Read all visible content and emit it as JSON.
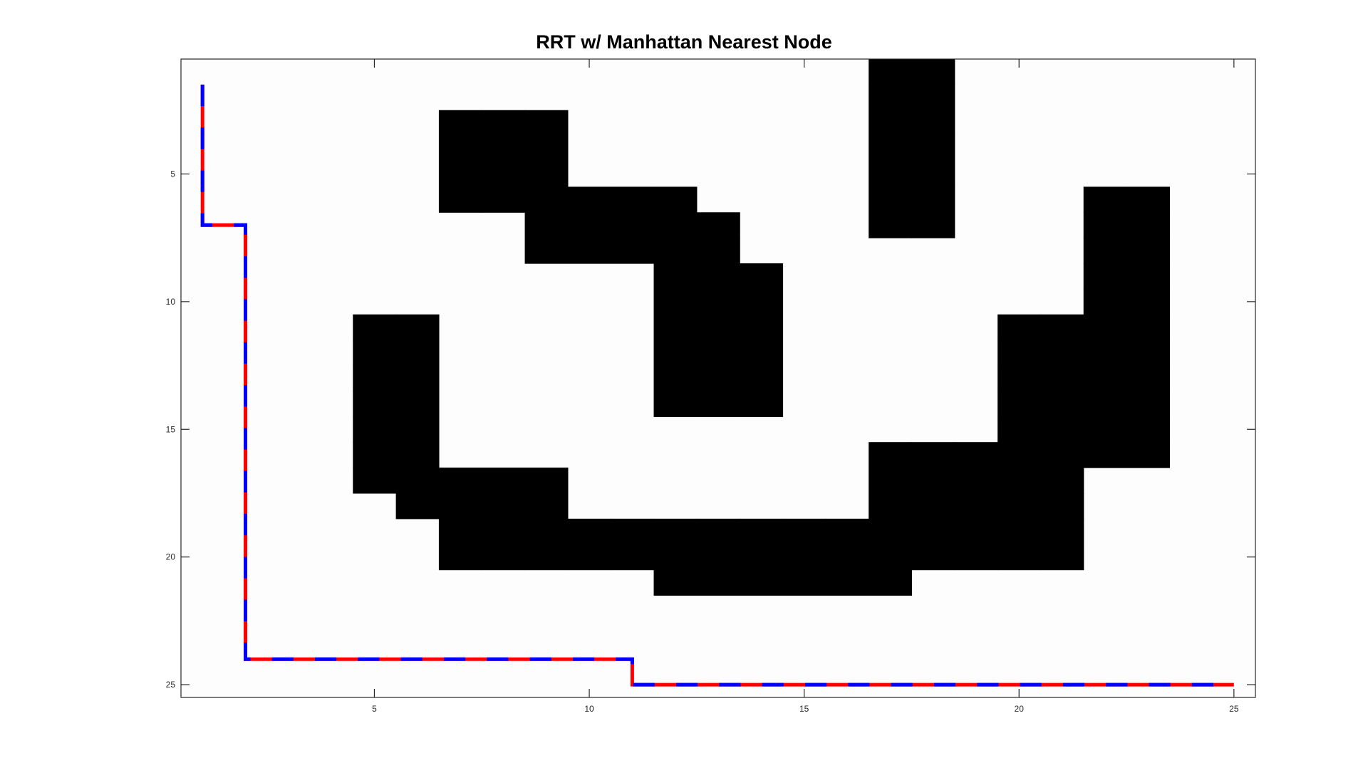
{
  "chart_data": {
    "type": "occupancy-grid",
    "title": "RRT w/ Manhattan Nearest Node",
    "xlabel": "",
    "ylabel": "",
    "xlim": [
      0.5,
      25.5
    ],
    "ylim": [
      0.5,
      25.5
    ],
    "y_reversed": true,
    "x_ticks": [
      5,
      10,
      15,
      20,
      25
    ],
    "y_ticks": [
      5,
      10,
      15,
      20,
      25
    ],
    "grid": false,
    "background_color": "#fdfdfd",
    "obstacle_color": "#000000",
    "obstacle_cells": [
      [
        17,
        1
      ],
      [
        18,
        1
      ],
      [
        17,
        2
      ],
      [
        18,
        2
      ],
      [
        7,
        3
      ],
      [
        8,
        3
      ],
      [
        9,
        3
      ],
      [
        17,
        3
      ],
      [
        18,
        3
      ],
      [
        7,
        4
      ],
      [
        8,
        4
      ],
      [
        9,
        4
      ],
      [
        17,
        4
      ],
      [
        18,
        4
      ],
      [
        7,
        5
      ],
      [
        8,
        5
      ],
      [
        9,
        5
      ],
      [
        17,
        5
      ],
      [
        18,
        5
      ],
      [
        7,
        6
      ],
      [
        8,
        6
      ],
      [
        9,
        6
      ],
      [
        10,
        6
      ],
      [
        11,
        6
      ],
      [
        12,
        6
      ],
      [
        17,
        6
      ],
      [
        18,
        6
      ],
      [
        22,
        6
      ],
      [
        23,
        6
      ],
      [
        9,
        7
      ],
      [
        10,
        7
      ],
      [
        11,
        7
      ],
      [
        12,
        7
      ],
      [
        13,
        7
      ],
      [
        17,
        7
      ],
      [
        18,
        7
      ],
      [
        22,
        7
      ],
      [
        23,
        7
      ],
      [
        9,
        8
      ],
      [
        10,
        8
      ],
      [
        11,
        8
      ],
      [
        12,
        8
      ],
      [
        13,
        8
      ],
      [
        22,
        8
      ],
      [
        23,
        8
      ],
      [
        12,
        9
      ],
      [
        13,
        9
      ],
      [
        14,
        9
      ],
      [
        22,
        9
      ],
      [
        23,
        9
      ],
      [
        12,
        10
      ],
      [
        13,
        10
      ],
      [
        14,
        10
      ],
      [
        22,
        10
      ],
      [
        23,
        10
      ],
      [
        5,
        11
      ],
      [
        6,
        11
      ],
      [
        12,
        11
      ],
      [
        13,
        11
      ],
      [
        14,
        11
      ],
      [
        20,
        11
      ],
      [
        21,
        11
      ],
      [
        22,
        11
      ],
      [
        23,
        11
      ],
      [
        5,
        12
      ],
      [
        6,
        12
      ],
      [
        12,
        12
      ],
      [
        13,
        12
      ],
      [
        14,
        12
      ],
      [
        20,
        12
      ],
      [
        21,
        12
      ],
      [
        22,
        12
      ],
      [
        23,
        12
      ],
      [
        5,
        13
      ],
      [
        6,
        13
      ],
      [
        12,
        13
      ],
      [
        13,
        13
      ],
      [
        14,
        13
      ],
      [
        20,
        13
      ],
      [
        21,
        13
      ],
      [
        22,
        13
      ],
      [
        23,
        13
      ],
      [
        5,
        14
      ],
      [
        6,
        14
      ],
      [
        12,
        14
      ],
      [
        13,
        14
      ],
      [
        14,
        14
      ],
      [
        20,
        14
      ],
      [
        21,
        14
      ],
      [
        22,
        14
      ],
      [
        23,
        14
      ],
      [
        5,
        15
      ],
      [
        6,
        15
      ],
      [
        20,
        15
      ],
      [
        21,
        15
      ],
      [
        22,
        15
      ],
      [
        23,
        15
      ],
      [
        5,
        16
      ],
      [
        6,
        16
      ],
      [
        17,
        16
      ],
      [
        18,
        16
      ],
      [
        19,
        16
      ],
      [
        20,
        16
      ],
      [
        21,
        16
      ],
      [
        22,
        16
      ],
      [
        23,
        16
      ],
      [
        5,
        17
      ],
      [
        6,
        17
      ],
      [
        7,
        17
      ],
      [
        8,
        17
      ],
      [
        9,
        17
      ],
      [
        17,
        17
      ],
      [
        18,
        17
      ],
      [
        19,
        17
      ],
      [
        20,
        17
      ],
      [
        21,
        17
      ],
      [
        6,
        18
      ],
      [
        7,
        18
      ],
      [
        8,
        18
      ],
      [
        9,
        18
      ],
      [
        17,
        18
      ],
      [
        18,
        18
      ],
      [
        19,
        18
      ],
      [
        20,
        18
      ],
      [
        21,
        18
      ],
      [
        7,
        19
      ],
      [
        8,
        19
      ],
      [
        9,
        19
      ],
      [
        10,
        19
      ],
      [
        11,
        19
      ],
      [
        12,
        19
      ],
      [
        13,
        19
      ],
      [
        14,
        19
      ],
      [
        15,
        19
      ],
      [
        16,
        19
      ],
      [
        17,
        19
      ],
      [
        18,
        19
      ],
      [
        19,
        19
      ],
      [
        20,
        19
      ],
      [
        21,
        19
      ],
      [
        7,
        20
      ],
      [
        8,
        20
      ],
      [
        9,
        20
      ],
      [
        10,
        20
      ],
      [
        11,
        20
      ],
      [
        12,
        20
      ],
      [
        13,
        20
      ],
      [
        14,
        20
      ],
      [
        15,
        20
      ],
      [
        16,
        20
      ],
      [
        17,
        20
      ],
      [
        18,
        20
      ],
      [
        19,
        20
      ],
      [
        20,
        20
      ],
      [
        21,
        20
      ],
      [
        12,
        21
      ],
      [
        13,
        21
      ],
      [
        14,
        21
      ],
      [
        15,
        21
      ],
      [
        16,
        21
      ],
      [
        17,
        21
      ]
    ],
    "series": [
      {
        "type": "line",
        "style": "dashed-two-color",
        "colors": [
          "#ff0000",
          "#0000ff"
        ],
        "x": [
          1,
          1,
          2,
          2,
          11,
          11,
          25
        ],
        "y": [
          1.5,
          7,
          7,
          24,
          24,
          25,
          25
        ]
      }
    ]
  }
}
